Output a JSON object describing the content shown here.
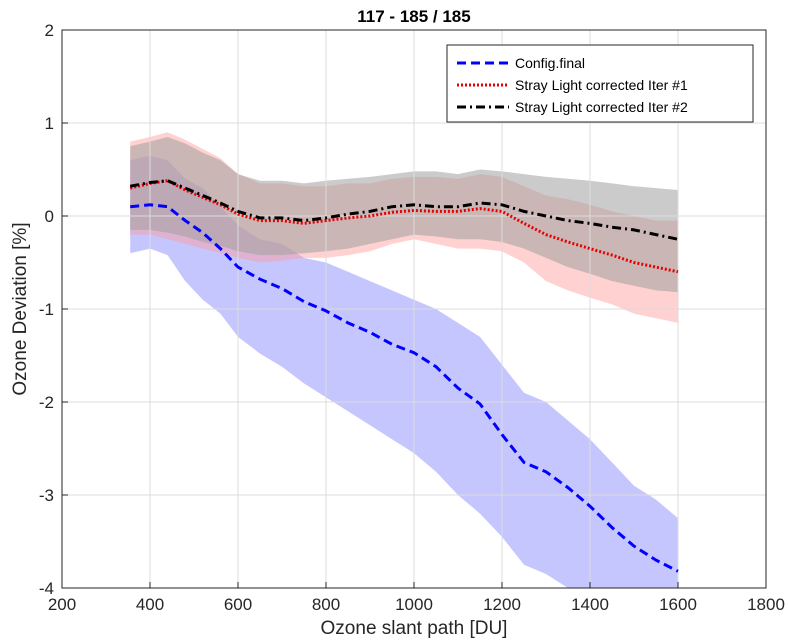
{
  "chart_data": {
    "type": "line",
    "title": "117 - 185 / 185",
    "xlabel": "Ozone slant path [DU]",
    "ylabel": "Ozone Deviation [%]",
    "xlim": [
      200,
      1800
    ],
    "ylim": [
      -4,
      2
    ],
    "xticks": [
      200,
      400,
      600,
      800,
      1000,
      1200,
      1400,
      1600,
      1800
    ],
    "yticks": [
      -4,
      -3,
      -2,
      -1,
      0,
      1,
      2
    ],
    "grid": true,
    "legend_position": "top-right",
    "series": [
      {
        "name": "Config.final",
        "color": "#0000ff",
        "line_style": "dashed",
        "band_color": "#8080ff",
        "x": [
          355,
          400,
          440,
          480,
          520,
          560,
          600,
          650,
          700,
          750,
          800,
          850,
          900,
          950,
          1000,
          1050,
          1100,
          1150,
          1200,
          1250,
          1300,
          1350,
          1400,
          1450,
          1500,
          1550,
          1600
        ],
        "y": [
          0.1,
          0.12,
          0.1,
          -0.05,
          -0.18,
          -0.35,
          -0.55,
          -0.68,
          -0.78,
          -0.92,
          -1.02,
          -1.15,
          -1.25,
          -1.38,
          -1.47,
          -1.62,
          -1.85,
          -2.02,
          -2.35,
          -2.65,
          -2.75,
          -2.92,
          -3.12,
          -3.35,
          -3.55,
          -3.7,
          -3.82
        ],
        "lower": [
          -0.4,
          -0.35,
          -0.42,
          -0.7,
          -0.9,
          -1.05,
          -1.3,
          -1.48,
          -1.62,
          -1.8,
          -1.95,
          -2.1,
          -2.25,
          -2.4,
          -2.55,
          -2.75,
          -3.0,
          -3.2,
          -3.45,
          -3.75,
          -3.85,
          -4.0,
          -4.0,
          -4.0,
          -4.0,
          -4.0,
          -4.0
        ],
        "upper": [
          0.6,
          0.65,
          0.6,
          0.4,
          0.3,
          0.1,
          -0.1,
          -0.25,
          -0.3,
          -0.45,
          -0.5,
          -0.6,
          -0.7,
          -0.8,
          -0.9,
          -1.0,
          -1.15,
          -1.3,
          -1.6,
          -1.9,
          -2.0,
          -2.2,
          -2.4,
          -2.65,
          -2.9,
          -3.05,
          -3.25
        ]
      },
      {
        "name": "Stray Light corrected Iter #1",
        "color": "#e60000",
        "line_style": "dotted",
        "band_color": "#ff9999",
        "x": [
          355,
          400,
          440,
          480,
          520,
          560,
          600,
          650,
          700,
          750,
          800,
          850,
          900,
          950,
          1000,
          1050,
          1100,
          1150,
          1200,
          1250,
          1300,
          1350,
          1400,
          1450,
          1500,
          1550,
          1600
        ],
        "y": [
          0.3,
          0.35,
          0.38,
          0.28,
          0.2,
          0.12,
          0.02,
          -0.05,
          -0.05,
          -0.08,
          -0.05,
          -0.02,
          0.0,
          0.04,
          0.06,
          0.05,
          0.05,
          0.08,
          0.05,
          -0.08,
          -0.2,
          -0.28,
          -0.35,
          -0.42,
          -0.5,
          -0.55,
          -0.6
        ],
        "lower": [
          -0.2,
          -0.2,
          -0.25,
          -0.3,
          -0.35,
          -0.4,
          -0.45,
          -0.5,
          -0.48,
          -0.45,
          -0.45,
          -0.42,
          -0.38,
          -0.3,
          -0.25,
          -0.3,
          -0.35,
          -0.35,
          -0.38,
          -0.5,
          -0.7,
          -0.8,
          -0.88,
          -0.95,
          -1.05,
          -1.1,
          -1.15
        ],
        "upper": [
          0.8,
          0.85,
          0.9,
          0.82,
          0.72,
          0.62,
          0.45,
          0.35,
          0.35,
          0.32,
          0.32,
          0.35,
          0.35,
          0.4,
          0.42,
          0.42,
          0.4,
          0.45,
          0.42,
          0.32,
          0.22,
          0.18,
          0.12,
          0.05,
          0.0,
          -0.05,
          -0.05
        ]
      },
      {
        "name": "Stray Light corrected Iter #2",
        "color": "#000000",
        "line_style": "dashdot",
        "band_color": "#a0a0a0",
        "x": [
          355,
          400,
          440,
          480,
          520,
          560,
          600,
          650,
          700,
          750,
          800,
          850,
          900,
          950,
          1000,
          1050,
          1100,
          1150,
          1200,
          1250,
          1300,
          1350,
          1400,
          1450,
          1500,
          1550,
          1600
        ],
        "y": [
          0.32,
          0.36,
          0.38,
          0.3,
          0.22,
          0.14,
          0.05,
          -0.02,
          -0.02,
          -0.05,
          -0.02,
          0.02,
          0.05,
          0.1,
          0.12,
          0.1,
          0.1,
          0.14,
          0.12,
          0.05,
          0.0,
          -0.05,
          -0.08,
          -0.12,
          -0.15,
          -0.2,
          -0.25
        ],
        "lower": [
          -0.15,
          -0.15,
          -0.18,
          -0.22,
          -0.28,
          -0.32,
          -0.38,
          -0.42,
          -0.42,
          -0.4,
          -0.38,
          -0.35,
          -0.3,
          -0.25,
          -0.2,
          -0.22,
          -0.25,
          -0.25,
          -0.28,
          -0.35,
          -0.45,
          -0.55,
          -0.62,
          -0.7,
          -0.75,
          -0.8,
          -0.82
        ],
        "upper": [
          0.75,
          0.8,
          0.85,
          0.78,
          0.68,
          0.6,
          0.45,
          0.38,
          0.38,
          0.35,
          0.38,
          0.4,
          0.42,
          0.45,
          0.48,
          0.48,
          0.45,
          0.5,
          0.48,
          0.45,
          0.42,
          0.4,
          0.38,
          0.35,
          0.32,
          0.3,
          0.28
        ]
      }
    ]
  }
}
